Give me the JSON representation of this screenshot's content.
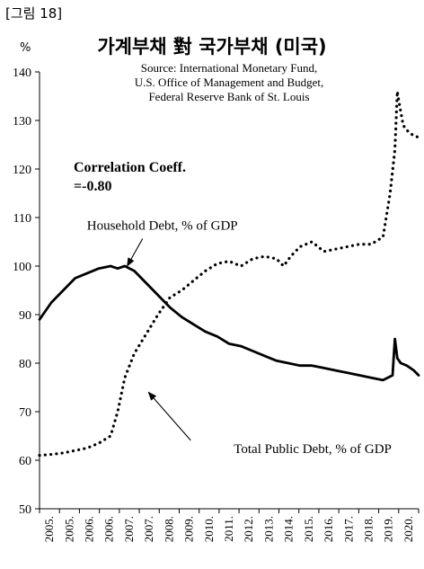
{
  "figure_label": "[그림 18]",
  "title": "가계부채 對 국가부채 (미국)",
  "source_lines": [
    "Source: International Monetary Fund,",
    "U.S. Office of Management and Budget,",
    "Federal Reserve Bank of St. Louis"
  ],
  "unit": "%",
  "correlation": [
    "Correlation Coeff.",
    "=-0.80"
  ],
  "colors": {
    "line": "#000000",
    "axis": "#000000"
  },
  "chart_data": {
    "type": "line",
    "ylim": [
      50,
      140
    ],
    "yticks": [
      50,
      60,
      70,
      80,
      90,
      100,
      110,
      120,
      130,
      140
    ],
    "xlim": [
      2005.0,
      2021.0
    ],
    "xtick_labels": [
      "2005.",
      "2005.",
      "2006.",
      "2006.",
      "2007.",
      "2007.",
      "2008.",
      "2009.",
      "2010.",
      "2011.",
      "2012.",
      "2013.",
      "2014.",
      "2015.",
      "2016.",
      "2017.",
      "2018.",
      "2019.",
      "2020."
    ],
    "grid": false,
    "series": [
      {
        "name": "Household Debt, % of GDP",
        "style": "solid",
        "label_anchor": [
          2008.7,
          100
        ],
        "label_text_at": [
          2007.0,
          107.5
        ],
        "x": [
          2005.0,
          2005.5,
          2006.0,
          2006.5,
          2007.0,
          2007.5,
          2008.0,
          2008.3,
          2008.6,
          2009.0,
          2009.5,
          2010.0,
          2010.5,
          2011.0,
          2011.5,
          2012.0,
          2012.5,
          2013.0,
          2013.5,
          2014.0,
          2014.5,
          2015.0,
          2015.5,
          2016.0,
          2016.5,
          2017.0,
          2017.5,
          2018.0,
          2018.5,
          2019.0,
          2019.5,
          2019.9,
          2020.0,
          2020.1,
          2020.25,
          2020.5,
          2020.8,
          2021.0
        ],
        "values": [
          89,
          92.5,
          95,
          97.5,
          98.5,
          99.5,
          100,
          99.5,
          100,
          99,
          96.5,
          94,
          91.5,
          89.5,
          88,
          86.5,
          85.5,
          84,
          83.5,
          82.5,
          81.5,
          80.5,
          80,
          79.5,
          79.5,
          79,
          78.5,
          78,
          77.5,
          77,
          76.5,
          77.5,
          85,
          81,
          80,
          79.5,
          78.5,
          77.5
        ]
      },
      {
        "name": "Total Public Debt, % of GDP",
        "style": "dotted",
        "label_anchor": [
          2009.6,
          74
        ],
        "label_text_at": [
          2013.2,
          61.5
        ],
        "x": [
          2005.0,
          2005.5,
          2006.0,
          2006.5,
          2007.0,
          2007.5,
          2008.0,
          2008.3,
          2008.6,
          2009.0,
          2009.5,
          2010.0,
          2010.5,
          2011.0,
          2011.5,
          2012.0,
          2012.5,
          2013.0,
          2013.5,
          2014.0,
          2014.5,
          2015.0,
          2015.3,
          2015.6,
          2016.0,
          2016.5,
          2017.0,
          2017.5,
          2018.0,
          2018.5,
          2019.0,
          2019.5,
          2019.8,
          2020.0,
          2020.1,
          2020.2,
          2020.35,
          2020.5,
          2020.75,
          2021.0
        ],
        "values": [
          61,
          61.2,
          61.5,
          62,
          62.5,
          63.5,
          65,
          70,
          77,
          82,
          86,
          90,
          93.5,
          95,
          97,
          99,
          100.5,
          101,
          100,
          101.5,
          102,
          101.5,
          100,
          102,
          104,
          105,
          103,
          103.5,
          104,
          104.5,
          104.5,
          106,
          115,
          124,
          136,
          133,
          129,
          128,
          127,
          126.5
        ]
      }
    ]
  }
}
